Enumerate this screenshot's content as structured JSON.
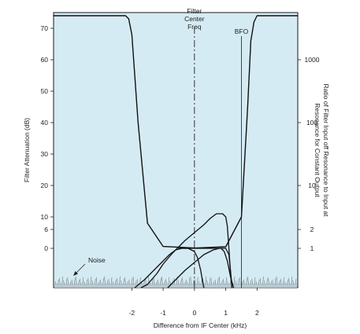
{
  "chart_data": {
    "type": "line",
    "title": "",
    "xlabel": "Difference from IF Center (kHz)",
    "ylabel_left": "Filter Attenuation (dB)",
    "ylabel_right": "Ratio of Filter Input off Resonance to Input at Resonance for Constant Output",
    "xlim": [
      -4.5,
      3.3
    ],
    "ylim_db": [
      -12.5,
      75
    ],
    "x_ticks": [
      -2,
      -1,
      0,
      1,
      2
    ],
    "x_tick_labels": [
      "-2",
      "-1",
      "0",
      "1",
      "2"
    ],
    "left_ticks": [
      0,
      6,
      10,
      20,
      30,
      40,
      50,
      60,
      70
    ],
    "left_tick_labels": [
      "0",
      "6",
      "10",
      "20",
      "30",
      "40",
      "50",
      "60",
      "70"
    ],
    "right_ticks_db": [
      0,
      6,
      20,
      40,
      60
    ],
    "right_tick_labels": [
      "1",
      "2",
      "10",
      "100",
      "1000"
    ],
    "annotations": {
      "filter_center": "Filter\nCenter\nFreq",
      "filter_center_x": 0,
      "bfo": "BFO",
      "bfo_x": 1.5,
      "noise": "Noise"
    },
    "noise_band_db": [
      -12.5,
      -11.2
    ],
    "series": [
      {
        "x": [
          -4.5,
          -2.2,
          -2.1,
          -2.0,
          -1.8,
          -1.5,
          -1.0,
          0,
          1.0,
          1.5,
          1.7,
          1.8,
          1.9,
          2.0,
          3.3
        ],
        "y": [
          74,
          74,
          73,
          68,
          40,
          8,
          0.6,
          0.1,
          0.5,
          10,
          45,
          66,
          72,
          74,
          74
        ]
      },
      {
        "x": [
          -1.7,
          -1.5,
          -1.2,
          -1.0,
          -0.7,
          -0.5,
          -0.3,
          0,
          0.3,
          0.5,
          0.7,
          0.9,
          1.0,
          1.05,
          1.1,
          1.15,
          1.2
        ],
        "y": [
          -12.5,
          -11.5,
          -8,
          -5,
          -1.5,
          0.5,
          2.5,
          5,
          7.5,
          9.5,
          11,
          11,
          10,
          7,
          0,
          -8,
          -12.5
        ]
      },
      {
        "x": [
          -1.9,
          -1.6,
          -1.3,
          -1.0,
          -0.8,
          -0.6,
          -0.4,
          -0.2,
          0,
          0.1,
          0.2,
          0.25,
          0.3
        ],
        "y": [
          -12.5,
          -10,
          -7,
          -4,
          -2,
          -0.5,
          0,
          0,
          -1,
          -3,
          -7,
          -10,
          -12.5
        ]
      },
      {
        "x": [
          -0.85,
          -0.6,
          -0.3,
          0,
          0.3,
          0.6,
          0.8,
          1.0,
          1.1,
          1.15,
          1.2
        ],
        "y": [
          -12.5,
          -10,
          -7,
          -4.5,
          -2,
          -0.5,
          0,
          0,
          -2,
          -7,
          -12.5
        ]
      },
      {
        "x": [
          -0.5,
          0.5,
          0.75,
          0.85,
          0.95,
          1.05,
          1.15,
          1.25
        ],
        "y": [
          0,
          0,
          0,
          0,
          -1,
          -4,
          -9,
          -12.5
        ]
      }
    ]
  }
}
